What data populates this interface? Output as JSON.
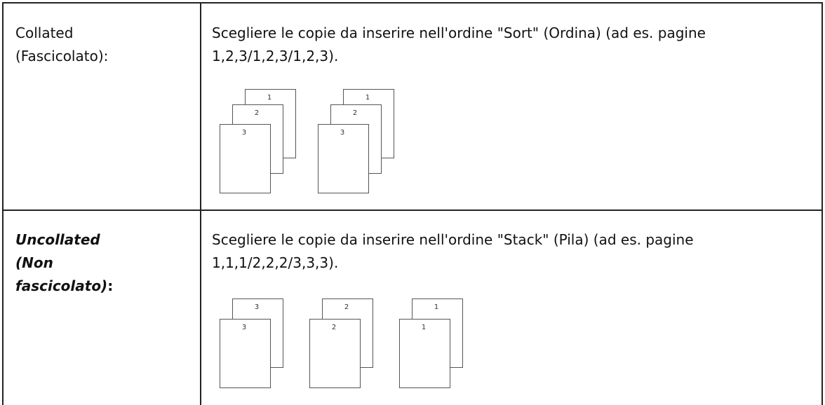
{
  "table": {
    "rows": [
      {
        "label": "Collated (Fascicolato):",
        "description": "Scegliere le copie da inserire nell'ordine \"Sort\" (Ordina) (ad es. pagine 1,2,3/1,2,3/1,2,3).",
        "stacks": [
          [
            "1",
            "2",
            "3"
          ],
          [
            "1",
            "2",
            "3"
          ]
        ]
      },
      {
        "label": "Uncollated (Non fascicolato)",
        "label_suffix": ":",
        "description": "Scegliere le copie da inserire nell'ordine \"Stack\" (Pila) (ad es. pagine 1,1,1/2,2,2/3,3,3).",
        "stacks": [
          [
            "3",
            "3"
          ],
          [
            "2",
            "2"
          ],
          [
            "1",
            "1"
          ]
        ]
      }
    ]
  }
}
